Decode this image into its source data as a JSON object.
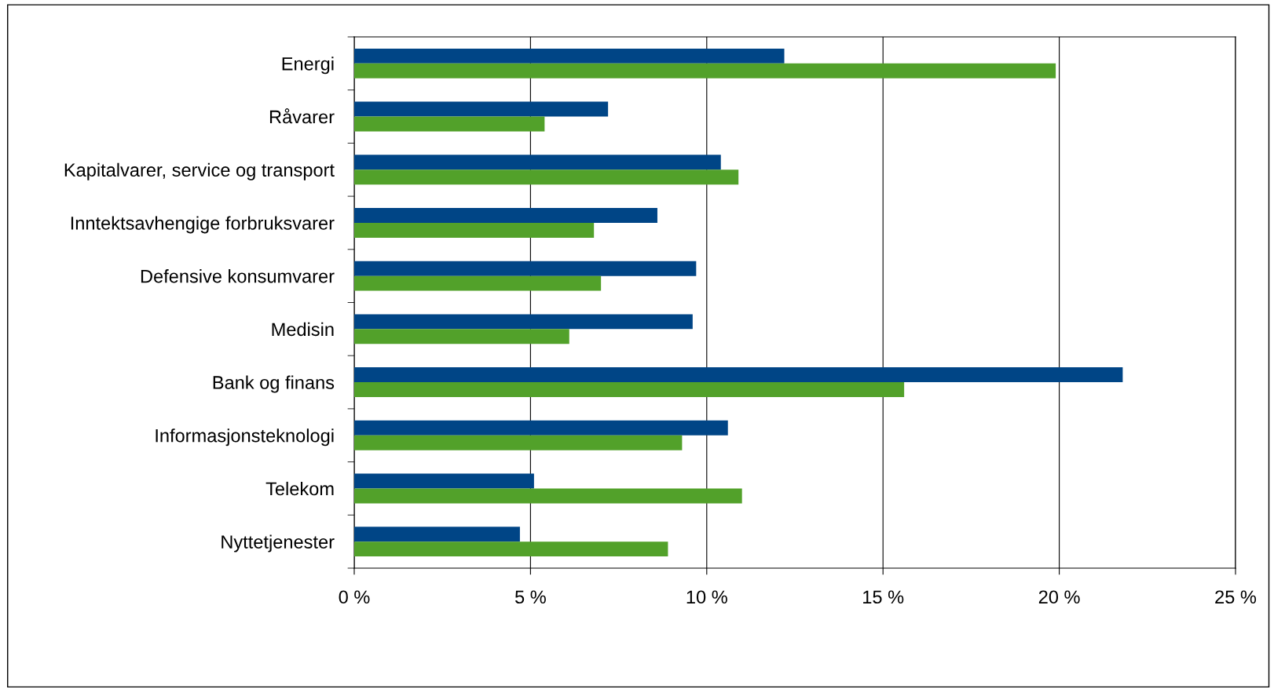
{
  "chart_data": {
    "type": "bar",
    "orientation": "horizontal",
    "categories": [
      "Energi",
      "Råvarer",
      "Kapitalvarer, service og transport",
      "Inntektsavhengige forbruksvarer",
      "Defensive konsumvarer",
      "Medisin",
      "Bank og finans",
      "Informasjonsteknologi",
      "Telekom",
      "Nyttetjenester"
    ],
    "series": [
      {
        "color": "#004586",
        "values": [
          12.2,
          7.2,
          10.4,
          8.6,
          9.7,
          9.6,
          21.8,
          10.6,
          5.1,
          4.7
        ]
      },
      {
        "color": "#52a12a",
        "values": [
          19.9,
          5.4,
          10.9,
          6.8,
          7.0,
          6.1,
          15.6,
          9.3,
          11.0,
          8.9
        ]
      }
    ],
    "xlim": [
      0,
      25
    ],
    "xticks": [
      {
        "value": 0,
        "label": "0 %"
      },
      {
        "value": 5,
        "label": "5 %"
      },
      {
        "value": 10,
        "label": "10 %"
      },
      {
        "value": 15,
        "label": "15 %"
      },
      {
        "value": 20,
        "label": "20 %"
      },
      {
        "value": 25,
        "label": "25 %"
      }
    ],
    "grid": "x",
    "legend": false
  }
}
